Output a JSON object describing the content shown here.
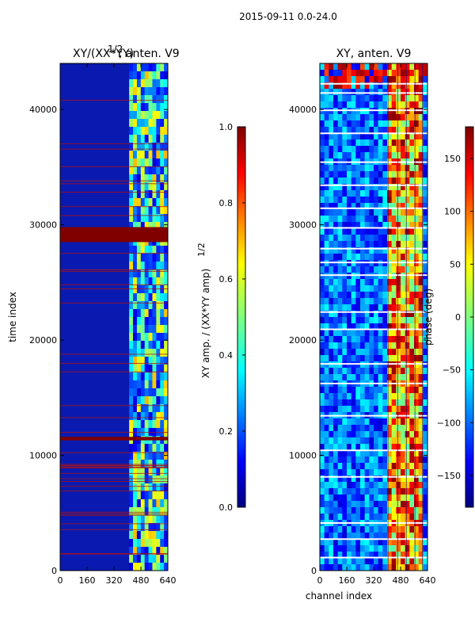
{
  "chart_data": [
    {
      "type": "heatmap",
      "id": "amp",
      "suptitle": "2015-09-11 0.0-24.0",
      "title_main": "XY/(XX*YY)",
      "title_exp": "1/2",
      "title_suffix": ", anten. V9",
      "xlabel": "",
      "ylabel": "time index",
      "xlim": [
        0,
        640
      ],
      "ylim": [
        0,
        44000
      ],
      "xticks": [
        0,
        160,
        320,
        480,
        640
      ],
      "yticks": [
        0,
        10000,
        20000,
        30000,
        40000
      ],
      "colorbar": {
        "label_main": "XY amp. / (XX*YY amp)",
        "label_exp": "1/2",
        "range": [
          0.0,
          1.0
        ],
        "ticks": [
          "0.0",
          "0.2",
          "0.4",
          "0.6",
          "0.8",
          "1.0"
        ]
      },
      "bands": [
        {
          "y0": 28500,
          "y1": 29800,
          "value": 1.0
        },
        {
          "y0": 11300,
          "y1": 11600,
          "value": 1.0
        }
      ],
      "active_channels": [
        410,
        640
      ]
    },
    {
      "type": "heatmap",
      "id": "phase",
      "title_main": "XY, anten. V9",
      "xlabel": "channel index",
      "ylabel": "",
      "xlim": [
        0,
        640
      ],
      "ylim": [
        0,
        44000
      ],
      "xticks": [
        0,
        160,
        320,
        480,
        640
      ],
      "yticks": [
        0,
        10000,
        20000,
        30000,
        40000
      ],
      "colorbar": {
        "label_main": "phase (deg)",
        "range": [
          -180,
          180
        ],
        "ticks": [
          "−150",
          "−100",
          "−50",
          "0",
          "50",
          "100",
          "150"
        ]
      },
      "bright_band_channels": [
        400,
        600
      ],
      "white_band_rows": [
        1200,
        2800,
        4200,
        8200,
        10500,
        13500,
        16300,
        18000,
        21000,
        22500,
        25700,
        26800,
        28000,
        29800,
        31500,
        33500,
        35500,
        38000,
        40000,
        41500,
        42300
      ]
    }
  ]
}
